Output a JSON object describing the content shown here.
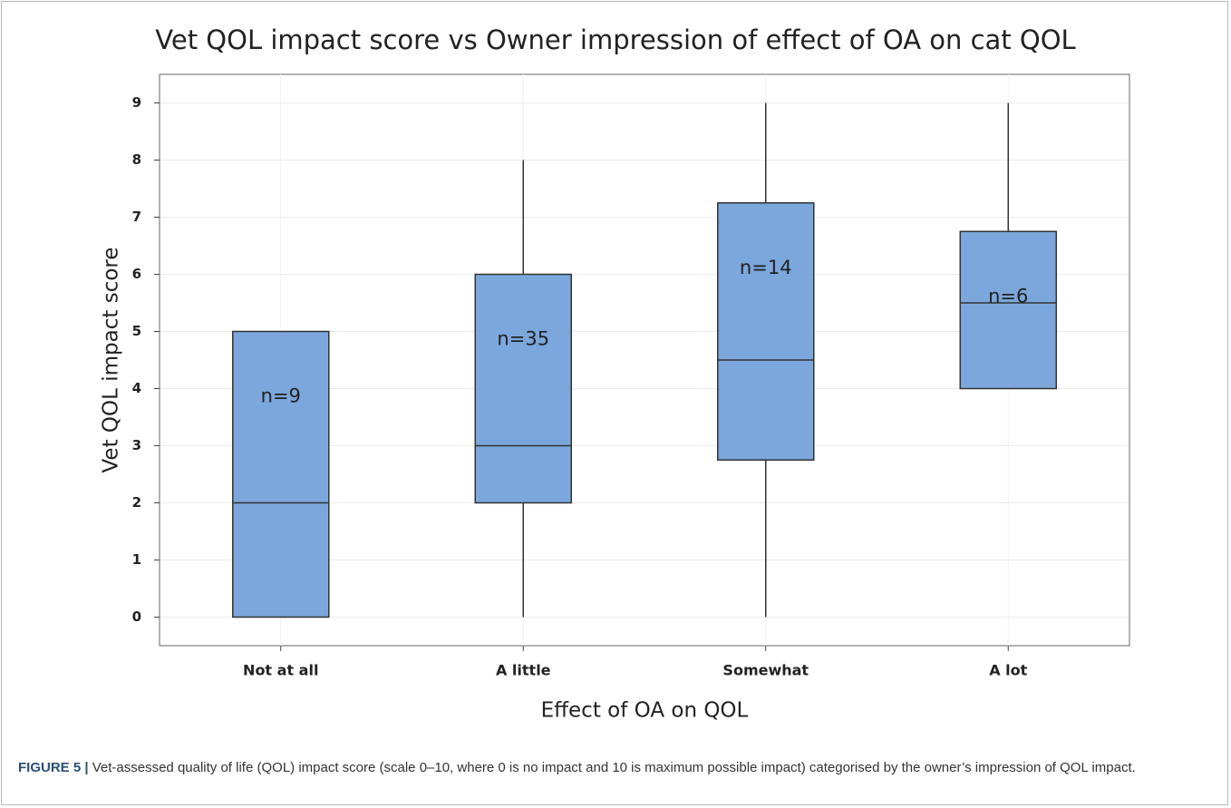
{
  "chart_data": {
    "type": "box",
    "title": "Vet QOL impact score vs Owner impression of effect of OA on cat QOL",
    "xlabel": "Effect of OA on QOL",
    "ylabel": "Vet QOL impact score",
    "categories": [
      "Not at all",
      "A little",
      "Somewhat",
      "A lot"
    ],
    "min": [
      0,
      0,
      0,
      4
    ],
    "q1": [
      0,
      2,
      2.75,
      4
    ],
    "median": [
      2,
      3,
      4.5,
      5.5
    ],
    "q3": [
      5,
      6,
      7.25,
      6.75
    ],
    "max": [
      5,
      8,
      9,
      9
    ],
    "annotations": [
      "n=9",
      "n=35",
      "n=14",
      "n=6"
    ],
    "color": "#7ba7dc",
    "ylim": [
      -0.5,
      9.5
    ],
    "yticks": [
      0,
      1,
      2,
      3,
      4,
      5,
      6,
      7,
      8,
      9
    ],
    "grid": true
  },
  "caption": {
    "label": "FIGURE 5 |",
    "text": "Vet-assessed quality of life (QOL) impact score (scale 0–10, where 0 is no impact and 10 is maximum possible impact) categorised by the owner’s impression of QOL impact."
  }
}
